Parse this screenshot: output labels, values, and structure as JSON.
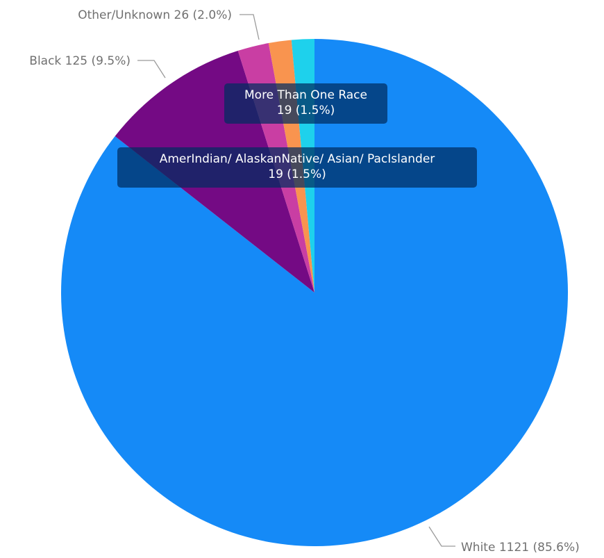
{
  "chart_data": {
    "type": "pie",
    "title": "",
    "start_angle_deg": 0,
    "direction": "clockwise",
    "slices": [
      {
        "name": "White",
        "value": 1121,
        "percent": "85.6%",
        "color": "#158af7",
        "label": "White 1121 (85.6%)"
      },
      {
        "name": "Black",
        "value": 125,
        "percent": "9.5%",
        "color": "#740a84",
        "label": "Black 125 (9.5%)"
      },
      {
        "name": "Other/Unknown",
        "value": 26,
        "percent": "2.0%",
        "color": "#c93ea3",
        "label": "Other/Unknown 26 (2.0%)"
      },
      {
        "name": "More Than One Race",
        "value": 19,
        "percent": "1.5%",
        "color": "#f9944f",
        "tooltip_title": "More Than One Race",
        "tooltip_value": "19 (1.5%)"
      },
      {
        "name": "AmerIndian/ AlaskanNative/ Asian/ PacIslander",
        "value": 19,
        "percent": "1.5%",
        "color": "#1ed1ec",
        "tooltip_title": "AmerIndian/ AlaskanNative/ Asian/ PacIslander",
        "tooltip_value": "19 (1.5%)"
      }
    ]
  }
}
